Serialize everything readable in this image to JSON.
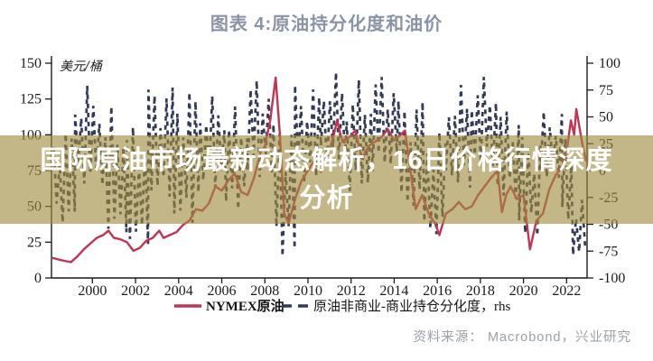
{
  "title": "图表 4:原油持分化度和油价",
  "overlay": {
    "line1": "国际原油市场最新动态解析，16日价格行情深度",
    "line2": "分析"
  },
  "source": "资料来源：  Macrobond，兴业研究",
  "colors": {
    "oil_price_line": "#c23551",
    "position_diff_line": "#333a57",
    "overlay_band": "rgba(160,139,61,0.62)",
    "title_text": "#8a94a6",
    "source_text": "#9ba1a8"
  },
  "chart_data": {
    "type": "line",
    "title": "图表 4:原油持分化度和油价",
    "grid": false,
    "legend_position": "bottom",
    "x": {
      "lim": [
        1998.1,
        2022.95
      ],
      "ticks": [
        2000,
        2002,
        2004,
        2006,
        2008,
        2010,
        2012,
        2014,
        2016,
        2018,
        2020,
        2022
      ]
    },
    "y_left": {
      "label": "美元/桶",
      "lim": [
        0,
        150
      ],
      "ticks": [
        0,
        25,
        50,
        75,
        100,
        125,
        150
      ]
    },
    "y_right": {
      "label": "rhs",
      "lim": [
        -100,
        100
      ],
      "ticks": [
        -100,
        -75,
        -50,
        -25,
        0,
        25,
        50,
        75,
        100
      ]
    },
    "series": [
      {
        "name": "NYMEX原油",
        "axis": "left",
        "style": "solid",
        "color": "#c23551",
        "points": [
          [
            1998.15,
            14
          ],
          [
            1998.4,
            13
          ],
          [
            1998.7,
            12
          ],
          [
            1999.0,
            11
          ],
          [
            1999.3,
            15
          ],
          [
            1999.6,
            20
          ],
          [
            1999.9,
            24
          ],
          [
            2000.2,
            28
          ],
          [
            2000.5,
            30
          ],
          [
            2000.75,
            33
          ],
          [
            2001.0,
            28
          ],
          [
            2001.3,
            27
          ],
          [
            2001.6,
            25
          ],
          [
            2001.9,
            19
          ],
          [
            2002.2,
            21
          ],
          [
            2002.5,
            26
          ],
          [
            2002.8,
            28
          ],
          [
            2003.1,
            33
          ],
          [
            2003.3,
            28
          ],
          [
            2003.6,
            30
          ],
          [
            2003.9,
            32
          ],
          [
            2004.2,
            37
          ],
          [
            2004.5,
            40
          ],
          [
            2004.8,
            48
          ],
          [
            2005.1,
            47
          ],
          [
            2005.4,
            52
          ],
          [
            2005.7,
            64
          ],
          [
            2006.0,
            61
          ],
          [
            2006.3,
            68
          ],
          [
            2006.6,
            73
          ],
          [
            2006.9,
            60
          ],
          [
            2007.2,
            58
          ],
          [
            2007.5,
            70
          ],
          [
            2007.8,
            88
          ],
          [
            2008.0,
            92
          ],
          [
            2008.25,
            110
          ],
          [
            2008.5,
            140
          ],
          [
            2008.7,
            100
          ],
          [
            2008.9,
            45
          ],
          [
            2009.1,
            38
          ],
          [
            2009.4,
            55
          ],
          [
            2009.7,
            68
          ],
          [
            2010.0,
            75
          ],
          [
            2010.3,
            82
          ],
          [
            2010.6,
            74
          ],
          [
            2010.9,
            84
          ],
          [
            2011.2,
            100
          ],
          [
            2011.35,
            110
          ],
          [
            2011.6,
            95
          ],
          [
            2011.9,
            98
          ],
          [
            2012.2,
            103
          ],
          [
            2012.5,
            83
          ],
          [
            2012.8,
            92
          ],
          [
            2013.1,
            95
          ],
          [
            2013.4,
            98
          ],
          [
            2013.7,
            104
          ],
          [
            2014.0,
            96
          ],
          [
            2014.3,
            100
          ],
          [
            2014.5,
            103
          ],
          [
            2014.8,
            70
          ],
          [
            2015.0,
            48
          ],
          [
            2015.3,
            58
          ],
          [
            2015.6,
            45
          ],
          [
            2015.9,
            38
          ],
          [
            2016.1,
            30
          ],
          [
            2016.4,
            45
          ],
          [
            2016.7,
            48
          ],
          [
            2017.0,
            53
          ],
          [
            2017.3,
            48
          ],
          [
            2017.6,
            50
          ],
          [
            2017.9,
            58
          ],
          [
            2018.2,
            64
          ],
          [
            2018.5,
            70
          ],
          [
            2018.8,
            75
          ],
          [
            2019.0,
            46
          ],
          [
            2019.2,
            58
          ],
          [
            2019.4,
            64
          ],
          [
            2019.7,
            55
          ],
          [
            2020.0,
            58
          ],
          [
            2020.3,
            20
          ],
          [
            2020.6,
            40
          ],
          [
            2020.9,
            45
          ],
          [
            2021.2,
            62
          ],
          [
            2021.5,
            72
          ],
          [
            2021.8,
            78
          ],
          [
            2022.0,
            88
          ],
          [
            2022.2,
            110
          ],
          [
            2022.35,
            100
          ],
          [
            2022.45,
            118
          ],
          [
            2022.6,
            105
          ],
          [
            2022.75,
            92
          ],
          [
            2022.9,
            82
          ]
        ]
      },
      {
        "name": "原油非商业-商业持仓分化度，rhs",
        "axis": "right",
        "style": "dashed",
        "color": "#333a57",
        "envelope_note": "high-frequency oscillating series shown as dashed cloud; [year_start, year_end, low, high] on right axis",
        "envelope": [
          [
            1998.2,
            1999.2,
            -55,
            40
          ],
          [
            1999.2,
            2000.6,
            -20,
            80
          ],
          [
            2000.6,
            2001.6,
            -65,
            60
          ],
          [
            2001.6,
            2002.6,
            -75,
            45
          ],
          [
            2002.6,
            2003.8,
            -30,
            82
          ],
          [
            2003.8,
            2005.0,
            -55,
            80
          ],
          [
            2005.0,
            2006.2,
            -20,
            70
          ],
          [
            2006.2,
            2007.2,
            -40,
            60
          ],
          [
            2007.2,
            2008.4,
            -10,
            88
          ],
          [
            2008.4,
            2009.4,
            -85,
            50
          ],
          [
            2009.4,
            2010.6,
            -15,
            80
          ],
          [
            2010.6,
            2011.8,
            0,
            92
          ],
          [
            2011.8,
            2013.0,
            -25,
            85
          ],
          [
            2013.0,
            2014.2,
            -5,
            92
          ],
          [
            2014.2,
            2015.4,
            -45,
            70
          ],
          [
            2015.4,
            2016.4,
            -70,
            40
          ],
          [
            2016.4,
            2017.6,
            -20,
            80
          ],
          [
            2017.6,
            2018.8,
            0,
            88
          ],
          [
            2018.8,
            2019.8,
            -30,
            60
          ],
          [
            2019.8,
            2020.8,
            -65,
            35
          ],
          [
            2020.8,
            2021.8,
            -10,
            55
          ],
          [
            2021.8,
            2022.3,
            -50,
            30
          ],
          [
            2022.3,
            2022.9,
            -85,
            -20
          ]
        ]
      }
    ]
  }
}
